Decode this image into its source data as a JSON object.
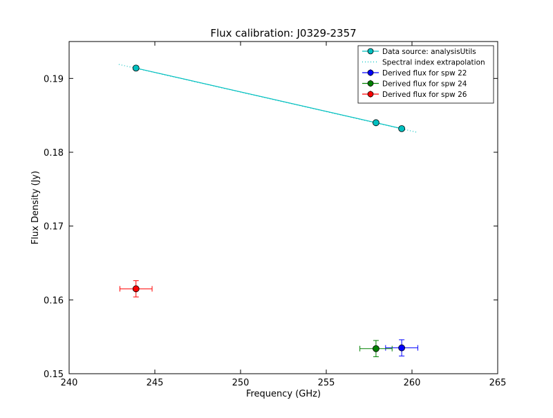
{
  "chart_data": {
    "type": "scatter",
    "title": "Flux calibration: J0329-2357",
    "xlabel": "Frequency (GHz)",
    "ylabel": "Flux Density (Jy)",
    "xlim": [
      240,
      265
    ],
    "ylim": [
      0.15,
      0.195
    ],
    "xticks": [
      240,
      245,
      250,
      255,
      260,
      265
    ],
    "xtick_labels": [
      "240",
      "245",
      "250",
      "255",
      "260",
      "265"
    ],
    "yticks": [
      0.15,
      0.16,
      0.17,
      0.18,
      0.19
    ],
    "ytick_labels": [
      "0.15",
      "0.16",
      "0.17",
      "0.18",
      "0.19"
    ],
    "grid": false,
    "legend_position": "top-right",
    "series": [
      {
        "name": "Data source: analysisUtils",
        "style": "line-markers",
        "color": "#00bfbf",
        "x": [
          243.9,
          257.9,
          259.4
        ],
        "y": [
          0.1914,
          0.184,
          0.1832
        ]
      },
      {
        "name": "Spectral index extrapolation",
        "style": "dotted-line",
        "color": "#00bfbf",
        "x": [
          242.9,
          260.3
        ],
        "y": [
          0.1919,
          0.1827
        ]
      },
      {
        "name": "Derived flux for spw 22",
        "style": "errorbar",
        "color": "#0000ff",
        "x": [
          259.4
        ],
        "y": [
          0.1535
        ],
        "xerr": [
          0.94
        ],
        "yerr": [
          0.0011
        ]
      },
      {
        "name": "Derived flux for spw 24",
        "style": "errorbar",
        "color": "#008000",
        "x": [
          257.9
        ],
        "y": [
          0.1534
        ],
        "xerr": [
          0.94
        ],
        "yerr": [
          0.0011
        ]
      },
      {
        "name": "Derived flux for spw 26",
        "style": "errorbar",
        "color": "#ff0000",
        "x": [
          243.9
        ],
        "y": [
          0.1615
        ],
        "xerr": [
          0.94
        ],
        "yerr": [
          0.0011
        ]
      }
    ]
  }
}
